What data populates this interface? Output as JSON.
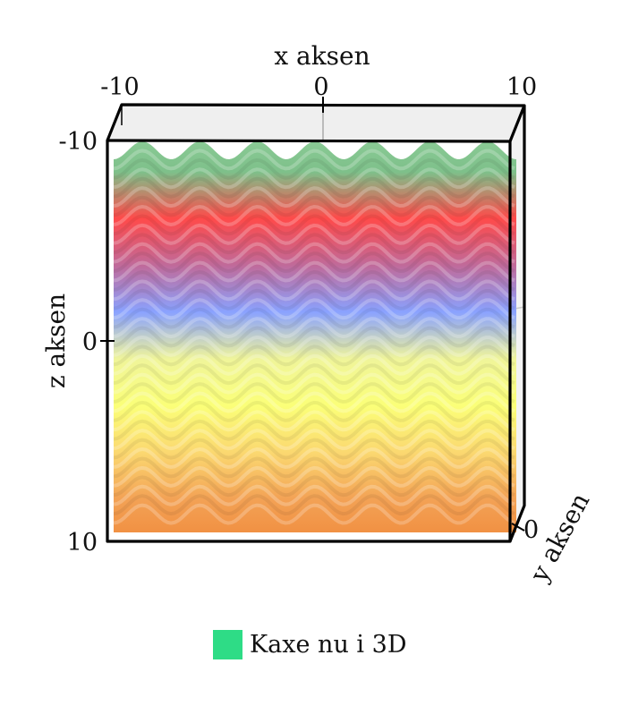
{
  "chart_data": {
    "type": "surface-3d",
    "title": "",
    "x_axis": {
      "label": "x aksen",
      "range": [
        -10,
        10
      ],
      "ticks": [
        "-10",
        "0",
        "10"
      ]
    },
    "y_axis": {
      "label": "y aksen",
      "ticks": [
        "0"
      ]
    },
    "z_axis": {
      "label": "z aksen",
      "range": [
        -10,
        10
      ],
      "ticks": [
        "-10",
        "0",
        "10"
      ],
      "reversed": true
    },
    "series": [
      {
        "name": "Kaxe nu i 3D",
        "legend_color": "#2edc86",
        "wave_periods_across_x": 7,
        "color_bands_top_to_bottom": [
          "#8fcf9a",
          "#7ec08a",
          "#ff4a4a",
          "#c06a9a",
          "#8aa2ff",
          "#f0f59a",
          "#fbff78",
          "#fbd870",
          "#f3a255",
          "#f08a3c"
        ]
      }
    ],
    "grid": false,
    "legend_position": "bottom-center"
  }
}
